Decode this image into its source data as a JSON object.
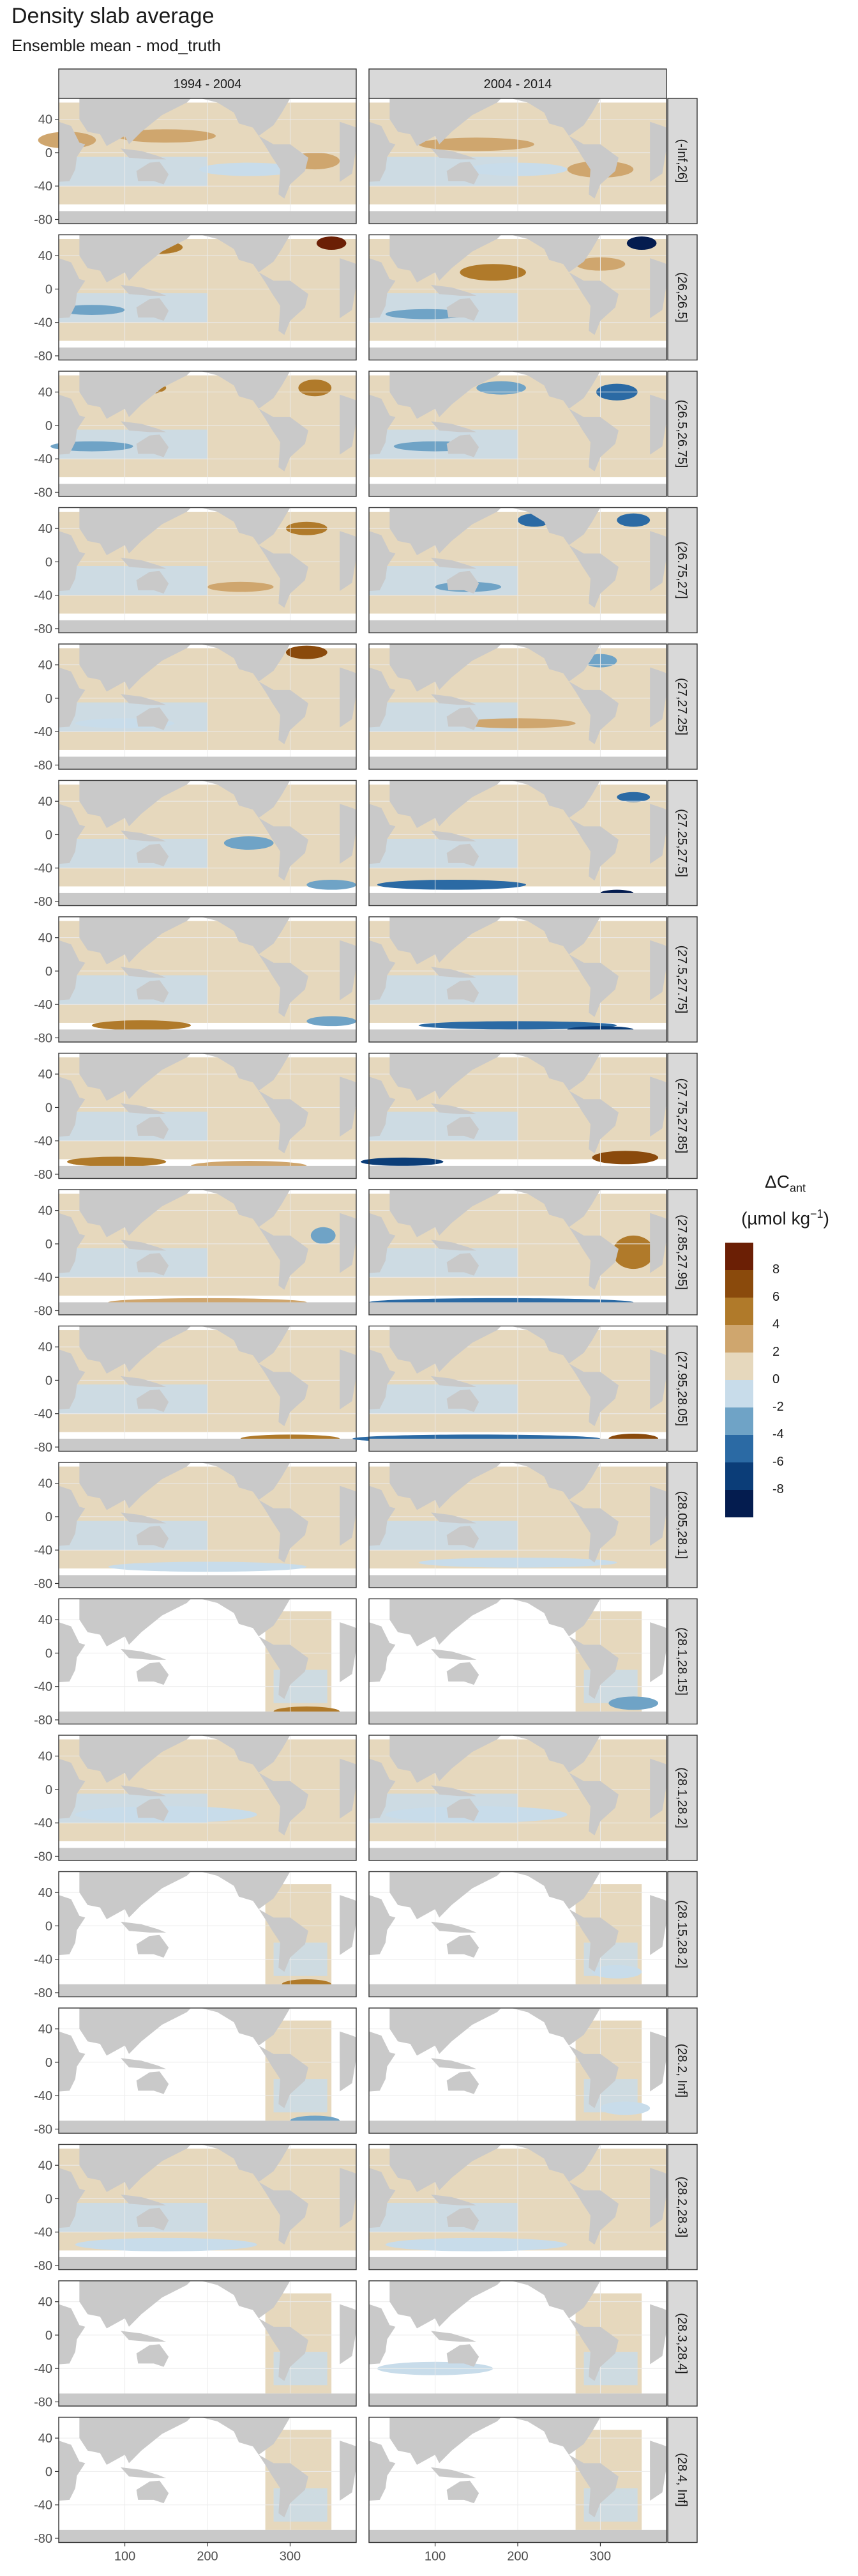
{
  "title": "Density slab average",
  "subtitle": "Ensemble mean - mod_truth",
  "chart_data": {
    "type": "heatmap",
    "title": "Density slab average",
    "subtitle": "Ensemble mean - mod_truth",
    "facet_columns": [
      "1994 - 2004",
      "2004 - 2014"
    ],
    "facet_rows": [
      "(-Inf,26]",
      "(26,26.5]",
      "(26.5,26.75]",
      "(26.75,27]",
      "(27,27.25]",
      "(27.25,27.5]",
      "(27.5,27.75]",
      "(27.75,27.85]",
      "(27.85,27.95]",
      "(27.95,28.05]",
      "(28.05,28.1]",
      "(28.1,28.15]",
      "(28.1,28.2]",
      "(28.15,28.2]",
      "(28.2, Inf]",
      "(28.2,28.3]",
      "(28.3,28.4]",
      "(28.4, Inf]"
    ],
    "x_ticks": [
      100,
      200,
      300
    ],
    "xlim": [
      20,
      380
    ],
    "y_ticks": [
      40,
      0,
      -40,
      -80
    ],
    "ylim": [
      -85,
      65
    ],
    "grid": true,
    "legend": {
      "title_main": "ΔC",
      "title_sub": "ant",
      "title_unit": "(µmol kg",
      "title_sup": "−1",
      "title_close": ")",
      "placement": "right",
      "labels": [
        "8",
        "6",
        "4",
        "2",
        "0",
        "-2",
        "-4",
        "-6",
        "-8"
      ],
      "colors": [
        "#6b1f05",
        "#8a4a0c",
        "#b07a2a",
        "#cfa66e",
        "#e6d8bd",
        "#c8dcea",
        "#6fa3c6",
        "#2b6aa4",
        "#0b3d78",
        "#041c4f"
      ]
    },
    "colors": {
      "land": "#c9c9c9",
      "ocean_empty": "#ffffff",
      "strip": "#d9d9d9"
    }
  }
}
